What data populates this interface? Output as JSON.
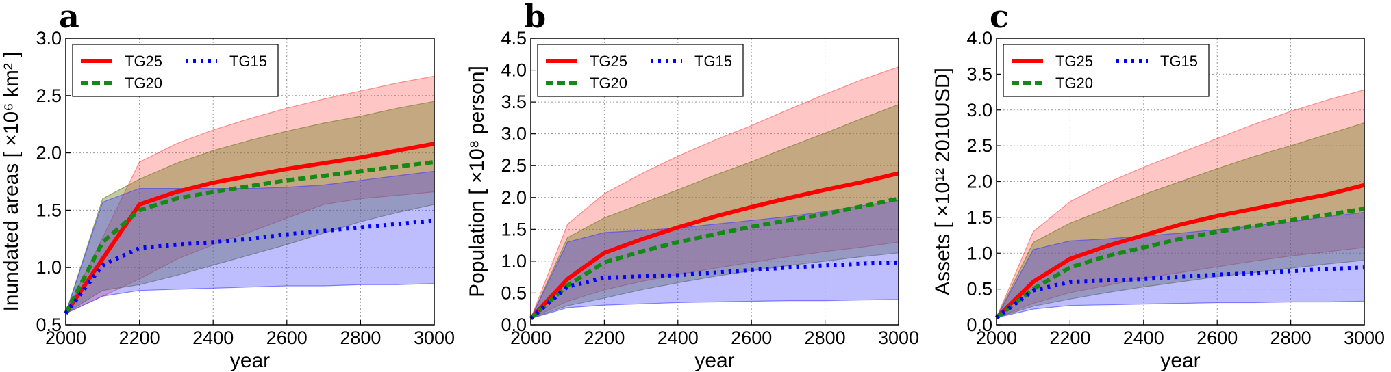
{
  "colors": {
    "tg25": "#ff0000",
    "tg20": "#138a13",
    "tg15": "#0000ff",
    "band25": "#ff4d4d",
    "band20": "#6b7a1c",
    "band15": "#3a3aff"
  },
  "chart_data": [
    {
      "type": "area",
      "panel_letter": "a",
      "xlabel": "year",
      "ylabel": "Inundated areas [ ×10⁶ km² ]",
      "xlim": [
        2000,
        3000
      ],
      "ylim": [
        0.5,
        3.0
      ],
      "xticks": [
        2000,
        2200,
        2400,
        2600,
        2800,
        3000
      ],
      "yticks": [
        "0.5",
        "1.0",
        "1.5",
        "2.0",
        "2.5",
        "3.0"
      ],
      "grid": true,
      "legend_position": "top-left",
      "series": [
        {
          "name": "TG25",
          "style": "solid",
          "x": [
            2000,
            2200,
            2300,
            2400,
            2500,
            2600,
            2700,
            2800,
            2900,
            3000
          ],
          "median": [
            0.6,
            1.55,
            1.66,
            1.74,
            1.8,
            1.86,
            1.91,
            1.96,
            2.02,
            2.08
          ],
          "upper": [
            0.6,
            1.92,
            2.08,
            2.2,
            2.3,
            2.39,
            2.47,
            2.54,
            2.61,
            2.67
          ],
          "lower": [
            0.6,
            0.9,
            1.07,
            1.2,
            1.31,
            1.43,
            1.55,
            1.6,
            1.63,
            1.66
          ]
        },
        {
          "name": "TG20",
          "style": "dashed",
          "x": [
            2000,
            2100,
            2200,
            2300,
            2400,
            2500,
            2600,
            2700,
            2800,
            2900,
            3000
          ],
          "median": [
            0.6,
            1.22,
            1.5,
            1.6,
            1.66,
            1.71,
            1.76,
            1.8,
            1.84,
            1.88,
            1.92
          ],
          "upper": [
            0.6,
            1.6,
            1.77,
            1.91,
            2.02,
            2.11,
            2.19,
            2.26,
            2.32,
            2.39,
            2.45
          ],
          "lower": [
            0.6,
            0.8,
            0.85,
            0.93,
            1.02,
            1.11,
            1.2,
            1.3,
            1.4,
            1.48,
            1.55
          ]
        },
        {
          "name": "TG15",
          "style": "dotted",
          "x": [
            2000,
            2100,
            2200,
            2300,
            2400,
            2500,
            2600,
            2700,
            2800,
            2900,
            3000
          ],
          "median": [
            0.6,
            1.02,
            1.17,
            1.2,
            1.22,
            1.25,
            1.29,
            1.32,
            1.35,
            1.38,
            1.41
          ],
          "upper": [
            0.6,
            1.57,
            1.69,
            1.69,
            1.69,
            1.69,
            1.7,
            1.72,
            1.76,
            1.8,
            1.84
          ],
          "lower": [
            0.6,
            0.75,
            0.8,
            0.81,
            0.82,
            0.83,
            0.84,
            0.84,
            0.85,
            0.85,
            0.86
          ]
        }
      ]
    },
    {
      "type": "area",
      "panel_letter": "b",
      "xlabel": "year",
      "ylabel": "Population [ ×10⁸ person]",
      "xlim": [
        2000,
        3000
      ],
      "ylim": [
        0.0,
        4.5
      ],
      "xticks": [
        2000,
        2200,
        2400,
        2600,
        2800,
        3000
      ],
      "yticks": [
        "0.0",
        "0.5",
        "1.0",
        "1.5",
        "2.0",
        "2.5",
        "3.0",
        "3.5",
        "4.0",
        "4.5"
      ],
      "grid": true,
      "legend_position": "top-left",
      "series": [
        {
          "name": "TG25",
          "style": "solid",
          "x": [
            2000,
            2100,
            2200,
            2300,
            2400,
            2500,
            2600,
            2700,
            2800,
            2900,
            3000
          ],
          "median": [
            0.1,
            0.72,
            1.13,
            1.34,
            1.53,
            1.7,
            1.85,
            1.99,
            2.12,
            2.24,
            2.38
          ],
          "upper": [
            0.1,
            1.58,
            2.06,
            2.37,
            2.65,
            2.9,
            3.13,
            3.38,
            3.62,
            3.85,
            4.05
          ],
          "lower": [
            0.1,
            0.37,
            0.55,
            0.68,
            0.79,
            0.89,
            0.98,
            1.07,
            1.15,
            1.22,
            1.3
          ]
        },
        {
          "name": "TG20",
          "style": "dashed",
          "x": [
            2000,
            2100,
            2200,
            2300,
            2400,
            2500,
            2600,
            2700,
            2800,
            2900,
            3000
          ],
          "median": [
            0.1,
            0.62,
            0.98,
            1.15,
            1.3,
            1.42,
            1.54,
            1.64,
            1.74,
            1.86,
            1.98
          ],
          "upper": [
            0.1,
            1.37,
            1.68,
            1.9,
            2.12,
            2.35,
            2.56,
            2.79,
            3.01,
            3.24,
            3.46
          ],
          "lower": [
            0.1,
            0.3,
            0.42,
            0.55,
            0.66,
            0.76,
            0.85,
            0.93,
            1.0,
            1.07,
            1.13
          ]
        },
        {
          "name": "TG15",
          "style": "dotted",
          "x": [
            2000,
            2100,
            2200,
            2300,
            2400,
            2500,
            2600,
            2700,
            2800,
            2900,
            3000
          ],
          "median": [
            0.1,
            0.6,
            0.74,
            0.76,
            0.78,
            0.82,
            0.86,
            0.9,
            0.93,
            0.96,
            0.98
          ],
          "upper": [
            0.1,
            1.3,
            1.45,
            1.48,
            1.52,
            1.58,
            1.64,
            1.7,
            1.78,
            1.87,
            1.95
          ],
          "lower": [
            0.1,
            0.27,
            0.31,
            0.33,
            0.35,
            0.36,
            0.37,
            0.38,
            0.38,
            0.39,
            0.4
          ]
        }
      ]
    },
    {
      "type": "area",
      "panel_letter": "c",
      "xlabel": "year",
      "ylabel": "Assets [ ×10¹² 2010USD]",
      "xlim": [
        2000,
        3000
      ],
      "ylim": [
        0.0,
        4.0
      ],
      "xticks": [
        2000,
        2200,
        2400,
        2600,
        2800,
        3000
      ],
      "yticks": [
        "0.0",
        "0.5",
        "1.0",
        "1.5",
        "2.0",
        "2.5",
        "3.0",
        "3.5",
        "4.0"
      ],
      "grid": true,
      "legend_position": "top-left",
      "series": [
        {
          "name": "TG25",
          "style": "solid",
          "x": [
            2000,
            2100,
            2200,
            2300,
            2400,
            2500,
            2600,
            2700,
            2800,
            2900,
            3000
          ],
          "median": [
            0.1,
            0.6,
            0.92,
            1.1,
            1.25,
            1.4,
            1.52,
            1.62,
            1.72,
            1.82,
            1.95
          ],
          "upper": [
            0.1,
            1.3,
            1.72,
            1.98,
            2.2,
            2.4,
            2.6,
            2.8,
            2.98,
            3.14,
            3.28
          ],
          "lower": [
            0.1,
            0.3,
            0.45,
            0.55,
            0.65,
            0.73,
            0.81,
            0.89,
            0.96,
            1.02,
            1.08
          ]
        },
        {
          "name": "TG20",
          "style": "dashed",
          "x": [
            2000,
            2100,
            2200,
            2300,
            2400,
            2500,
            2600,
            2700,
            2800,
            2900,
            3000
          ],
          "median": [
            0.1,
            0.5,
            0.8,
            0.96,
            1.08,
            1.2,
            1.3,
            1.38,
            1.46,
            1.54,
            1.62
          ],
          "upper": [
            0.1,
            1.15,
            1.42,
            1.62,
            1.82,
            2.0,
            2.18,
            2.35,
            2.5,
            2.66,
            2.82
          ],
          "lower": [
            0.1,
            0.26,
            0.36,
            0.45,
            0.53,
            0.6,
            0.67,
            0.73,
            0.79,
            0.85,
            0.9
          ]
        },
        {
          "name": "TG15",
          "style": "dotted",
          "x": [
            2000,
            2100,
            2200,
            2300,
            2400,
            2500,
            2600,
            2700,
            2800,
            2900,
            3000
          ],
          "median": [
            0.1,
            0.48,
            0.6,
            0.62,
            0.64,
            0.67,
            0.7,
            0.72,
            0.75,
            0.78,
            0.8
          ],
          "upper": [
            0.1,
            1.05,
            1.17,
            1.2,
            1.24,
            1.28,
            1.33,
            1.38,
            1.44,
            1.51,
            1.57
          ],
          "lower": [
            0.1,
            0.22,
            0.27,
            0.28,
            0.29,
            0.3,
            0.31,
            0.31,
            0.32,
            0.32,
            0.33
          ]
        }
      ]
    }
  ]
}
